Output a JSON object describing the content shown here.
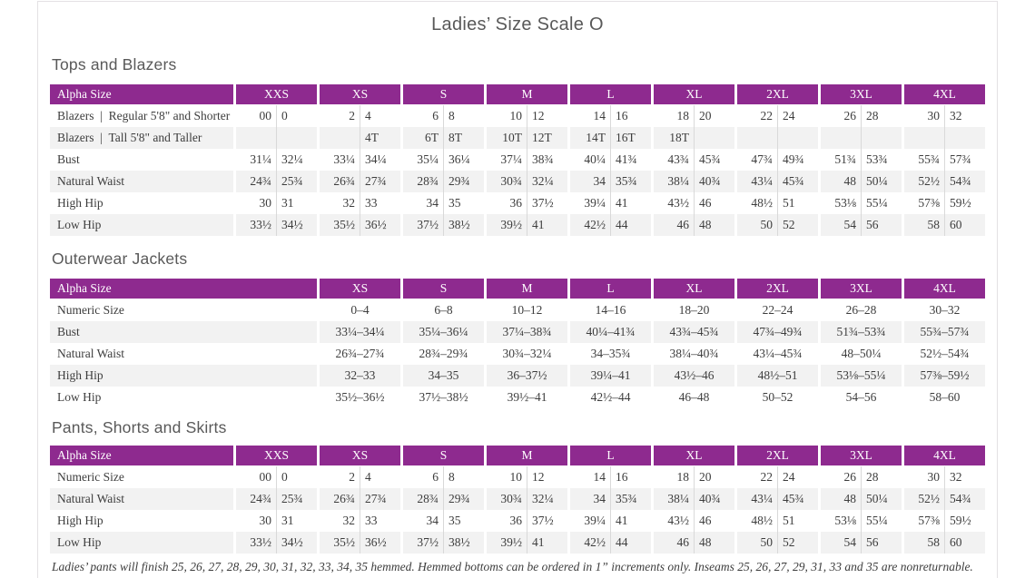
{
  "title": "Ladies’ Size Scale O",
  "colors": {
    "header_purple": "#8e2a8f",
    "row_alt_gray": "#f2f2f2",
    "grid_line": "#d9d9d9",
    "text": "#3d3d3d",
    "heading_gray": "#595959"
  },
  "tables": [
    {
      "heading": "Tops and Blazers",
      "header_label": "Alpha Size",
      "layout": "paired",
      "sizes": [
        "XXS",
        "XS",
        "S",
        "M",
        "L",
        "XL",
        "2XL",
        "3XL",
        "4XL"
      ],
      "rows": [
        {
          "label": "Blazers  |  Regular 5'8\" and Shorter",
          "cells": [
            "00",
            "0",
            "2",
            "4",
            "6",
            "8",
            "10",
            "12",
            "14",
            "16",
            "18",
            "20",
            "22",
            "24",
            "26",
            "28",
            "30",
            "32"
          ]
        },
        {
          "label": "Blazers  |  Tall 5'8\" and Taller",
          "cells": [
            "",
            "",
            "",
            "4T",
            "6T",
            "8T",
            "10T",
            "12T",
            "14T",
            "16T",
            "18T",
            "",
            "",
            "",
            "",
            "",
            "",
            ""
          ]
        },
        {
          "label": "Bust",
          "cells": [
            "31¼",
            "32¼",
            "33¼",
            "34¼",
            "35¼",
            "36¼",
            "37¼",
            "38¾",
            "40¼",
            "41¾",
            "43¾",
            "45¾",
            "47¾",
            "49¾",
            "51¾",
            "53¾",
            "55¾",
            "57¾"
          ]
        },
        {
          "label": "Natural Waist",
          "cells": [
            "24¾",
            "25¾",
            "26¾",
            "27¾",
            "28¾",
            "29¾",
            "30¾",
            "32¼",
            "34",
            "35¾",
            "38¼",
            "40¾",
            "43¼",
            "45¾",
            "48",
            "50¼",
            "52½",
            "54¾"
          ]
        },
        {
          "label": "High Hip",
          "cells": [
            "30",
            "31",
            "32",
            "33",
            "34",
            "35",
            "36",
            "37½",
            "39¼",
            "41",
            "43½",
            "46",
            "48½",
            "51",
            "53⅛",
            "55¼",
            "57⅜",
            "59½"
          ]
        },
        {
          "label": "Low Hip",
          "cells": [
            "33½",
            "34½",
            "35½",
            "36½",
            "37½",
            "38½",
            "39½",
            "41",
            "42½",
            "44",
            "46",
            "48",
            "50",
            "52",
            "54",
            "56",
            "58",
            "60"
          ]
        }
      ]
    },
    {
      "heading": "Outerwear Jackets",
      "header_label": "Alpha Size",
      "layout": "single",
      "sizes": [
        "XS",
        "S",
        "M",
        "L",
        "XL",
        "2XL",
        "3XL",
        "4XL"
      ],
      "rows": [
        {
          "label": "Numeric Size",
          "cells": [
            "0–4",
            "6–8",
            "10–12",
            "14–16",
            "18–20",
            "22–24",
            "26–28",
            "30–32"
          ]
        },
        {
          "label": "Bust",
          "cells": [
            "33¼–34¼",
            "35¼–36¼",
            "37¼–38¾",
            "40¼–41¾",
            "43¾–45¾",
            "47¾–49¾",
            "51¾–53¾",
            "55¾–57¾"
          ]
        },
        {
          "label": "Natural Waist",
          "cells": [
            "26¾–27¾",
            "28¾–29¾",
            "30¾–32¼",
            "34–35¾",
            "38¼–40¾",
            "43¼–45¾",
            "48–50¼",
            "52½–54¾"
          ]
        },
        {
          "label": "High Hip",
          "cells": [
            "32–33",
            "34–35",
            "36–37½",
            "39¼–41",
            "43½–46",
            "48½–51",
            "53⅛–55¼",
            "57⅜–59½"
          ]
        },
        {
          "label": "Low Hip",
          "cells": [
            "35½–36½",
            "37½–38½",
            "39½–41",
            "42½–44",
            "46–48",
            "50–52",
            "54–56",
            "58–60"
          ]
        }
      ]
    },
    {
      "heading": "Pants, Shorts and Skirts",
      "header_label": "Alpha Size",
      "layout": "paired",
      "sizes": [
        "XXS",
        "XS",
        "S",
        "M",
        "L",
        "XL",
        "2XL",
        "3XL",
        "4XL"
      ],
      "rows": [
        {
          "label": "Numeric Size",
          "cells": [
            "00",
            "0",
            "2",
            "4",
            "6",
            "8",
            "10",
            "12",
            "14",
            "16",
            "18",
            "20",
            "22",
            "24",
            "26",
            "28",
            "30",
            "32"
          ]
        },
        {
          "label": "Natural Waist",
          "cells": [
            "24¾",
            "25¾",
            "26¾",
            "27¾",
            "28¾",
            "29¾",
            "30¾",
            "32¼",
            "34",
            "35¾",
            "38¼",
            "40¾",
            "43¼",
            "45¾",
            "48",
            "50¼",
            "52½",
            "54¾"
          ]
        },
        {
          "label": "High Hip",
          "cells": [
            "30",
            "31",
            "32",
            "33",
            "34",
            "35",
            "36",
            "37½",
            "39¼",
            "41",
            "43½",
            "46",
            "48½",
            "51",
            "53⅛",
            "55¼",
            "57⅜",
            "59½"
          ]
        },
        {
          "label": "Low Hip",
          "cells": [
            "33½",
            "34½",
            "35½",
            "36½",
            "37½",
            "38½",
            "39½",
            "41",
            "42½",
            "44",
            "46",
            "48",
            "50",
            "52",
            "54",
            "56",
            "58",
            "60"
          ]
        }
      ]
    }
  ],
  "footnote": "Ladies’ pants will finish 25, 26, 27, 28, 29, 30, 31, 32, 33, 34, 35 hemmed. Hemmed bottoms can be ordered in 1” increments only. Inseams 25, 26, 27, 29, 31, 33 and 35 are nonreturnable."
}
